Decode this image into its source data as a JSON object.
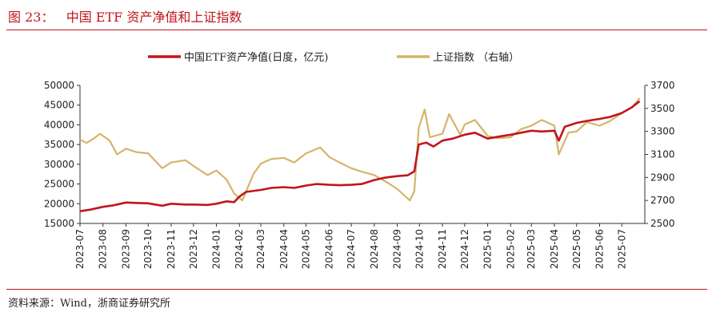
{
  "header": {
    "figure_title": "图 23：   中国 ETF 资产净值和上证指数"
  },
  "footer": {
    "source": "资料来源：Wind，浙商证券研究所"
  },
  "colors": {
    "accent": "#c0161c",
    "etf_line": "#c0161c",
    "index_line": "#d4b56a"
  },
  "chart_data": {
    "type": "line",
    "x_categories": [
      "2023-07",
      "2023-08",
      "2023-09",
      "2023-10",
      "2023-11",
      "2023-12",
      "2024-01",
      "2024-02",
      "2024-03",
      "2024-04",
      "2024-05",
      "2024-06",
      "2024-07",
      "2024-08",
      "2024-09",
      "2024-10",
      "2024-11",
      "2024-12",
      "2025-01",
      "2025-02",
      "2025-03",
      "2025-04",
      "2025-05",
      "2025-06",
      "2025-07"
    ],
    "y_left": {
      "ticks": [
        15000,
        20000,
        25000,
        30000,
        35000,
        40000,
        45000,
        50000
      ],
      "ylim": [
        15000,
        50000
      ]
    },
    "y_right": {
      "ticks": [
        2500,
        2700,
        2900,
        3100,
        3300,
        3500,
        3700
      ],
      "ylim": [
        2500,
        3700
      ]
    },
    "grid": false,
    "legend_position": "top-center",
    "series": [
      {
        "name": "中国ETF资产净值(日度，亿元)",
        "axis": "left",
        "points": [
          [
            "2023-07-01",
            18100
          ],
          [
            "2023-07-15",
            18500
          ],
          [
            "2023-08-01",
            19200
          ],
          [
            "2023-08-15",
            19600
          ],
          [
            "2023-09-01",
            20300
          ],
          [
            "2023-09-15",
            20200
          ],
          [
            "2023-10-01",
            20100
          ],
          [
            "2023-10-20",
            19500
          ],
          [
            "2023-11-01",
            20000
          ],
          [
            "2023-11-20",
            19800
          ],
          [
            "2023-12-01",
            19800
          ],
          [
            "2023-12-20",
            19700
          ],
          [
            "2024-01-01",
            20000
          ],
          [
            "2024-01-15",
            20600
          ],
          [
            "2024-01-25",
            20400
          ],
          [
            "2024-02-01",
            21800
          ],
          [
            "2024-02-10",
            23000
          ],
          [
            "2024-03-01",
            23500
          ],
          [
            "2024-03-15",
            24000
          ],
          [
            "2024-04-01",
            24200
          ],
          [
            "2024-04-15",
            24000
          ],
          [
            "2024-05-01",
            24600
          ],
          [
            "2024-05-15",
            25000
          ],
          [
            "2024-06-01",
            24800
          ],
          [
            "2024-06-15",
            24700
          ],
          [
            "2024-07-01",
            24800
          ],
          [
            "2024-07-15",
            25000
          ],
          [
            "2024-08-01",
            26000
          ],
          [
            "2024-08-15",
            26600
          ],
          [
            "2024-09-01",
            27000
          ],
          [
            "2024-09-15",
            27200
          ],
          [
            "2024-09-24",
            28200
          ],
          [
            "2024-09-30",
            35000
          ],
          [
            "2024-10-10",
            35500
          ],
          [
            "2024-10-20",
            34500
          ],
          [
            "2024-11-01",
            36000
          ],
          [
            "2024-11-15",
            36500
          ],
          [
            "2024-12-01",
            37500
          ],
          [
            "2024-12-15",
            38000
          ],
          [
            "2025-01-01",
            36500
          ],
          [
            "2025-01-15",
            37000
          ],
          [
            "2025-02-01",
            37500
          ],
          [
            "2025-02-15",
            38000
          ],
          [
            "2025-03-01",
            38500
          ],
          [
            "2025-03-15",
            38300
          ],
          [
            "2025-04-01",
            38500
          ],
          [
            "2025-04-07",
            36000
          ],
          [
            "2025-04-15",
            39500
          ],
          [
            "2025-05-01",
            40500
          ],
          [
            "2025-05-15",
            41000
          ],
          [
            "2025-06-01",
            41500
          ],
          [
            "2025-06-15",
            42000
          ],
          [
            "2025-07-01",
            43000
          ],
          [
            "2025-07-15",
            44500
          ],
          [
            "2025-07-25",
            46000
          ]
        ]
      },
      {
        "name": "上证指数 （右轴）",
        "axis": "right",
        "points": [
          [
            "2023-07-01",
            3230
          ],
          [
            "2023-07-10",
            3200
          ],
          [
            "2023-07-20",
            3240
          ],
          [
            "2023-07-28",
            3280
          ],
          [
            "2023-08-10",
            3220
          ],
          [
            "2023-08-20",
            3100
          ],
          [
            "2023-09-01",
            3150
          ],
          [
            "2023-09-15",
            3120
          ],
          [
            "2023-10-01",
            3110
          ],
          [
            "2023-10-20",
            2980
          ],
          [
            "2023-11-01",
            3030
          ],
          [
            "2023-11-20",
            3050
          ],
          [
            "2023-12-01",
            3000
          ],
          [
            "2023-12-20",
            2920
          ],
          [
            "2024-01-01",
            2960
          ],
          [
            "2024-01-15",
            2880
          ],
          [
            "2024-01-25",
            2760
          ],
          [
            "2024-02-05",
            2700
          ],
          [
            "2024-02-20",
            2930
          ],
          [
            "2024-03-01",
            3020
          ],
          [
            "2024-03-15",
            3060
          ],
          [
            "2024-04-01",
            3070
          ],
          [
            "2024-04-15",
            3030
          ],
          [
            "2024-05-01",
            3110
          ],
          [
            "2024-05-20",
            3160
          ],
          [
            "2024-06-01",
            3080
          ],
          [
            "2024-06-15",
            3030
          ],
          [
            "2024-07-01",
            2980
          ],
          [
            "2024-07-15",
            2950
          ],
          [
            "2024-08-01",
            2920
          ],
          [
            "2024-08-20",
            2850
          ],
          [
            "2024-09-01",
            2800
          ],
          [
            "2024-09-18",
            2700
          ],
          [
            "2024-09-24",
            2780
          ],
          [
            "2024-09-30",
            3330
          ],
          [
            "2024-10-08",
            3490
          ],
          [
            "2024-10-15",
            3250
          ],
          [
            "2024-11-01",
            3280
          ],
          [
            "2024-11-10",
            3450
          ],
          [
            "2024-11-25",
            3270
          ],
          [
            "2024-12-01",
            3360
          ],
          [
            "2024-12-15",
            3400
          ],
          [
            "2025-01-01",
            3260
          ],
          [
            "2025-01-15",
            3240
          ],
          [
            "2025-02-01",
            3250
          ],
          [
            "2025-02-15",
            3320
          ],
          [
            "2025-03-01",
            3350
          ],
          [
            "2025-03-15",
            3400
          ],
          [
            "2025-04-01",
            3350
          ],
          [
            "2025-04-07",
            3100
          ],
          [
            "2025-04-20",
            3290
          ],
          [
            "2025-05-01",
            3300
          ],
          [
            "2025-05-15",
            3380
          ],
          [
            "2025-06-01",
            3350
          ],
          [
            "2025-06-15",
            3390
          ],
          [
            "2025-07-01",
            3460
          ],
          [
            "2025-07-15",
            3510
          ],
          [
            "2025-07-25",
            3590
          ]
        ]
      }
    ]
  }
}
